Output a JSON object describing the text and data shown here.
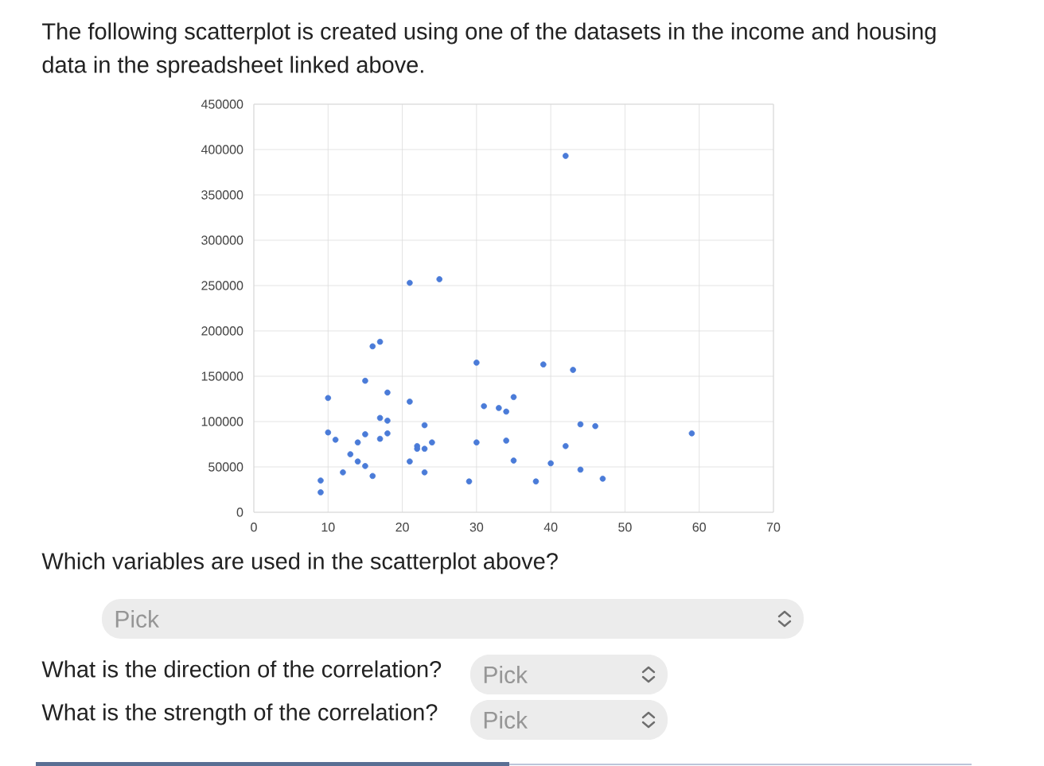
{
  "chart_data": {
    "type": "scatter",
    "title": "The following scatterplot is created using one of the datasets in the income and housing data in the spreadsheet linked above.",
    "x": [
      9,
      9,
      10,
      10,
      11,
      12,
      13,
      14,
      14,
      15,
      15,
      15,
      16,
      16,
      17,
      17,
      17,
      18,
      18,
      18,
      21,
      21,
      21,
      22,
      22,
      23,
      23,
      23,
      24,
      25,
      29,
      30,
      30,
      31,
      33,
      34,
      34,
      35,
      35,
      38,
      39,
      40,
      42,
      42,
      43,
      44,
      44,
      46,
      47,
      59
    ],
    "values": [
      35000,
      22000,
      126000,
      88000,
      80000,
      44000,
      64000,
      77000,
      56000,
      145000,
      86000,
      51000,
      183000,
      40000,
      188000,
      104000,
      81000,
      132000,
      101000,
      87000,
      122000,
      56000,
      253000,
      73000,
      70000,
      96000,
      70000,
      44000,
      77000,
      257000,
      34000,
      165000,
      77000,
      117000,
      115000,
      111000,
      79000,
      127000,
      57000,
      34000,
      163000,
      54000,
      393000,
      73000,
      157000,
      97000,
      47000,
      95000,
      37000,
      87000
    ],
    "color": "#4a7bd8",
    "marker": "circle",
    "xlim": [
      0,
      70
    ],
    "xticks": [
      0,
      10,
      20,
      30,
      40,
      50,
      60,
      70
    ],
    "ylim": [
      0,
      450000
    ],
    "yticks": [
      0,
      50000,
      100000,
      150000,
      200000,
      250000,
      300000,
      350000,
      400000,
      450000
    ],
    "grid": true,
    "annotations": [
      "Which variables are used in the scatterplot above?",
      "Pick",
      "What is the direction of the correlation?",
      "Pick",
      "What is the strength of the correlation?",
      "Pick"
    ]
  }
}
